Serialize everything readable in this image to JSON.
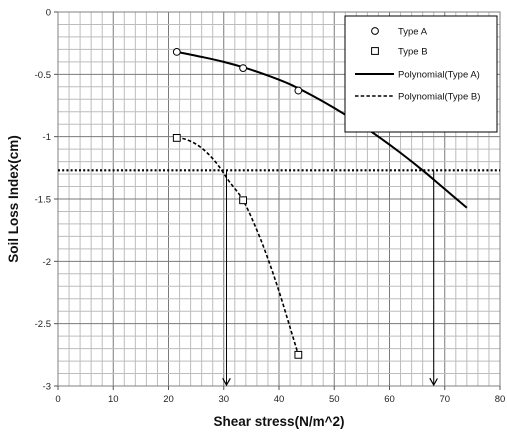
{
  "chart_data": {
    "type": "scatter",
    "title": "",
    "xlabel": "Shear stress(N/m^2)",
    "ylabel": "Soil Loss Index(cm)",
    "xlim": [
      0,
      80
    ],
    "ylim": [
      -3,
      0
    ],
    "x_major_ticks": [
      0,
      10,
      20,
      30,
      40,
      50,
      60,
      70,
      80
    ],
    "y_major_ticks": [
      0,
      -0.5,
      -1,
      -1.5,
      -2,
      -2.5,
      -3
    ],
    "x_tick_labels": [
      "0",
      "10",
      "20",
      "30",
      "40",
      "50",
      "60",
      "70",
      "80"
    ],
    "y_tick_labels": [
      "0",
      "-0.5",
      "-1",
      "-1.5",
      "-2",
      "-2.5",
      "-3"
    ],
    "grid": true,
    "legend_position": "top-right",
    "series": [
      {
        "name": "Type A",
        "kind": "points",
        "marker": "circle",
        "color": "#000000",
        "x": [
          21.5,
          33.5,
          43.5
        ],
        "y": [
          -0.32,
          -0.45,
          -0.63
        ]
      },
      {
        "name": "Type B",
        "kind": "points",
        "marker": "square",
        "color": "#000000",
        "x": [
          21.5,
          33.5,
          43.5
        ],
        "y": [
          -1.01,
          -1.51,
          -2.75
        ]
      },
      {
        "name": "Polynomial(Type A)",
        "kind": "line",
        "dash": "solid",
        "color": "#000000",
        "x": [
          21.5,
          26,
          30,
          34,
          38,
          42,
          46,
          50,
          54,
          58,
          62,
          66,
          70,
          74
        ],
        "y": [
          -0.32,
          -0.36,
          -0.4,
          -0.45,
          -0.51,
          -0.58,
          -0.67,
          -0.77,
          -0.88,
          -1.0,
          -1.13,
          -1.27,
          -1.42,
          -1.57
        ]
      },
      {
        "name": "Polynomial(Type B)",
        "kind": "line",
        "dash": "dashed",
        "color": "#000000",
        "x": [
          21.5,
          23,
          25,
          27,
          29,
          31,
          33.5,
          36,
          38,
          40,
          42,
          43.5
        ],
        "y": [
          -1.01,
          -1.02,
          -1.06,
          -1.13,
          -1.23,
          -1.36,
          -1.51,
          -1.75,
          -1.98,
          -2.24,
          -2.53,
          -2.75
        ]
      }
    ],
    "reference_lines": [
      {
        "orientation": "horizontal",
        "y": -1.27,
        "style": "dotted"
      }
    ],
    "arrows": [
      {
        "x": 30.5,
        "from_y": -1.27,
        "to_y": -3
      },
      {
        "x": 68,
        "from_y": -1.27,
        "to_y": -3
      }
    ]
  }
}
